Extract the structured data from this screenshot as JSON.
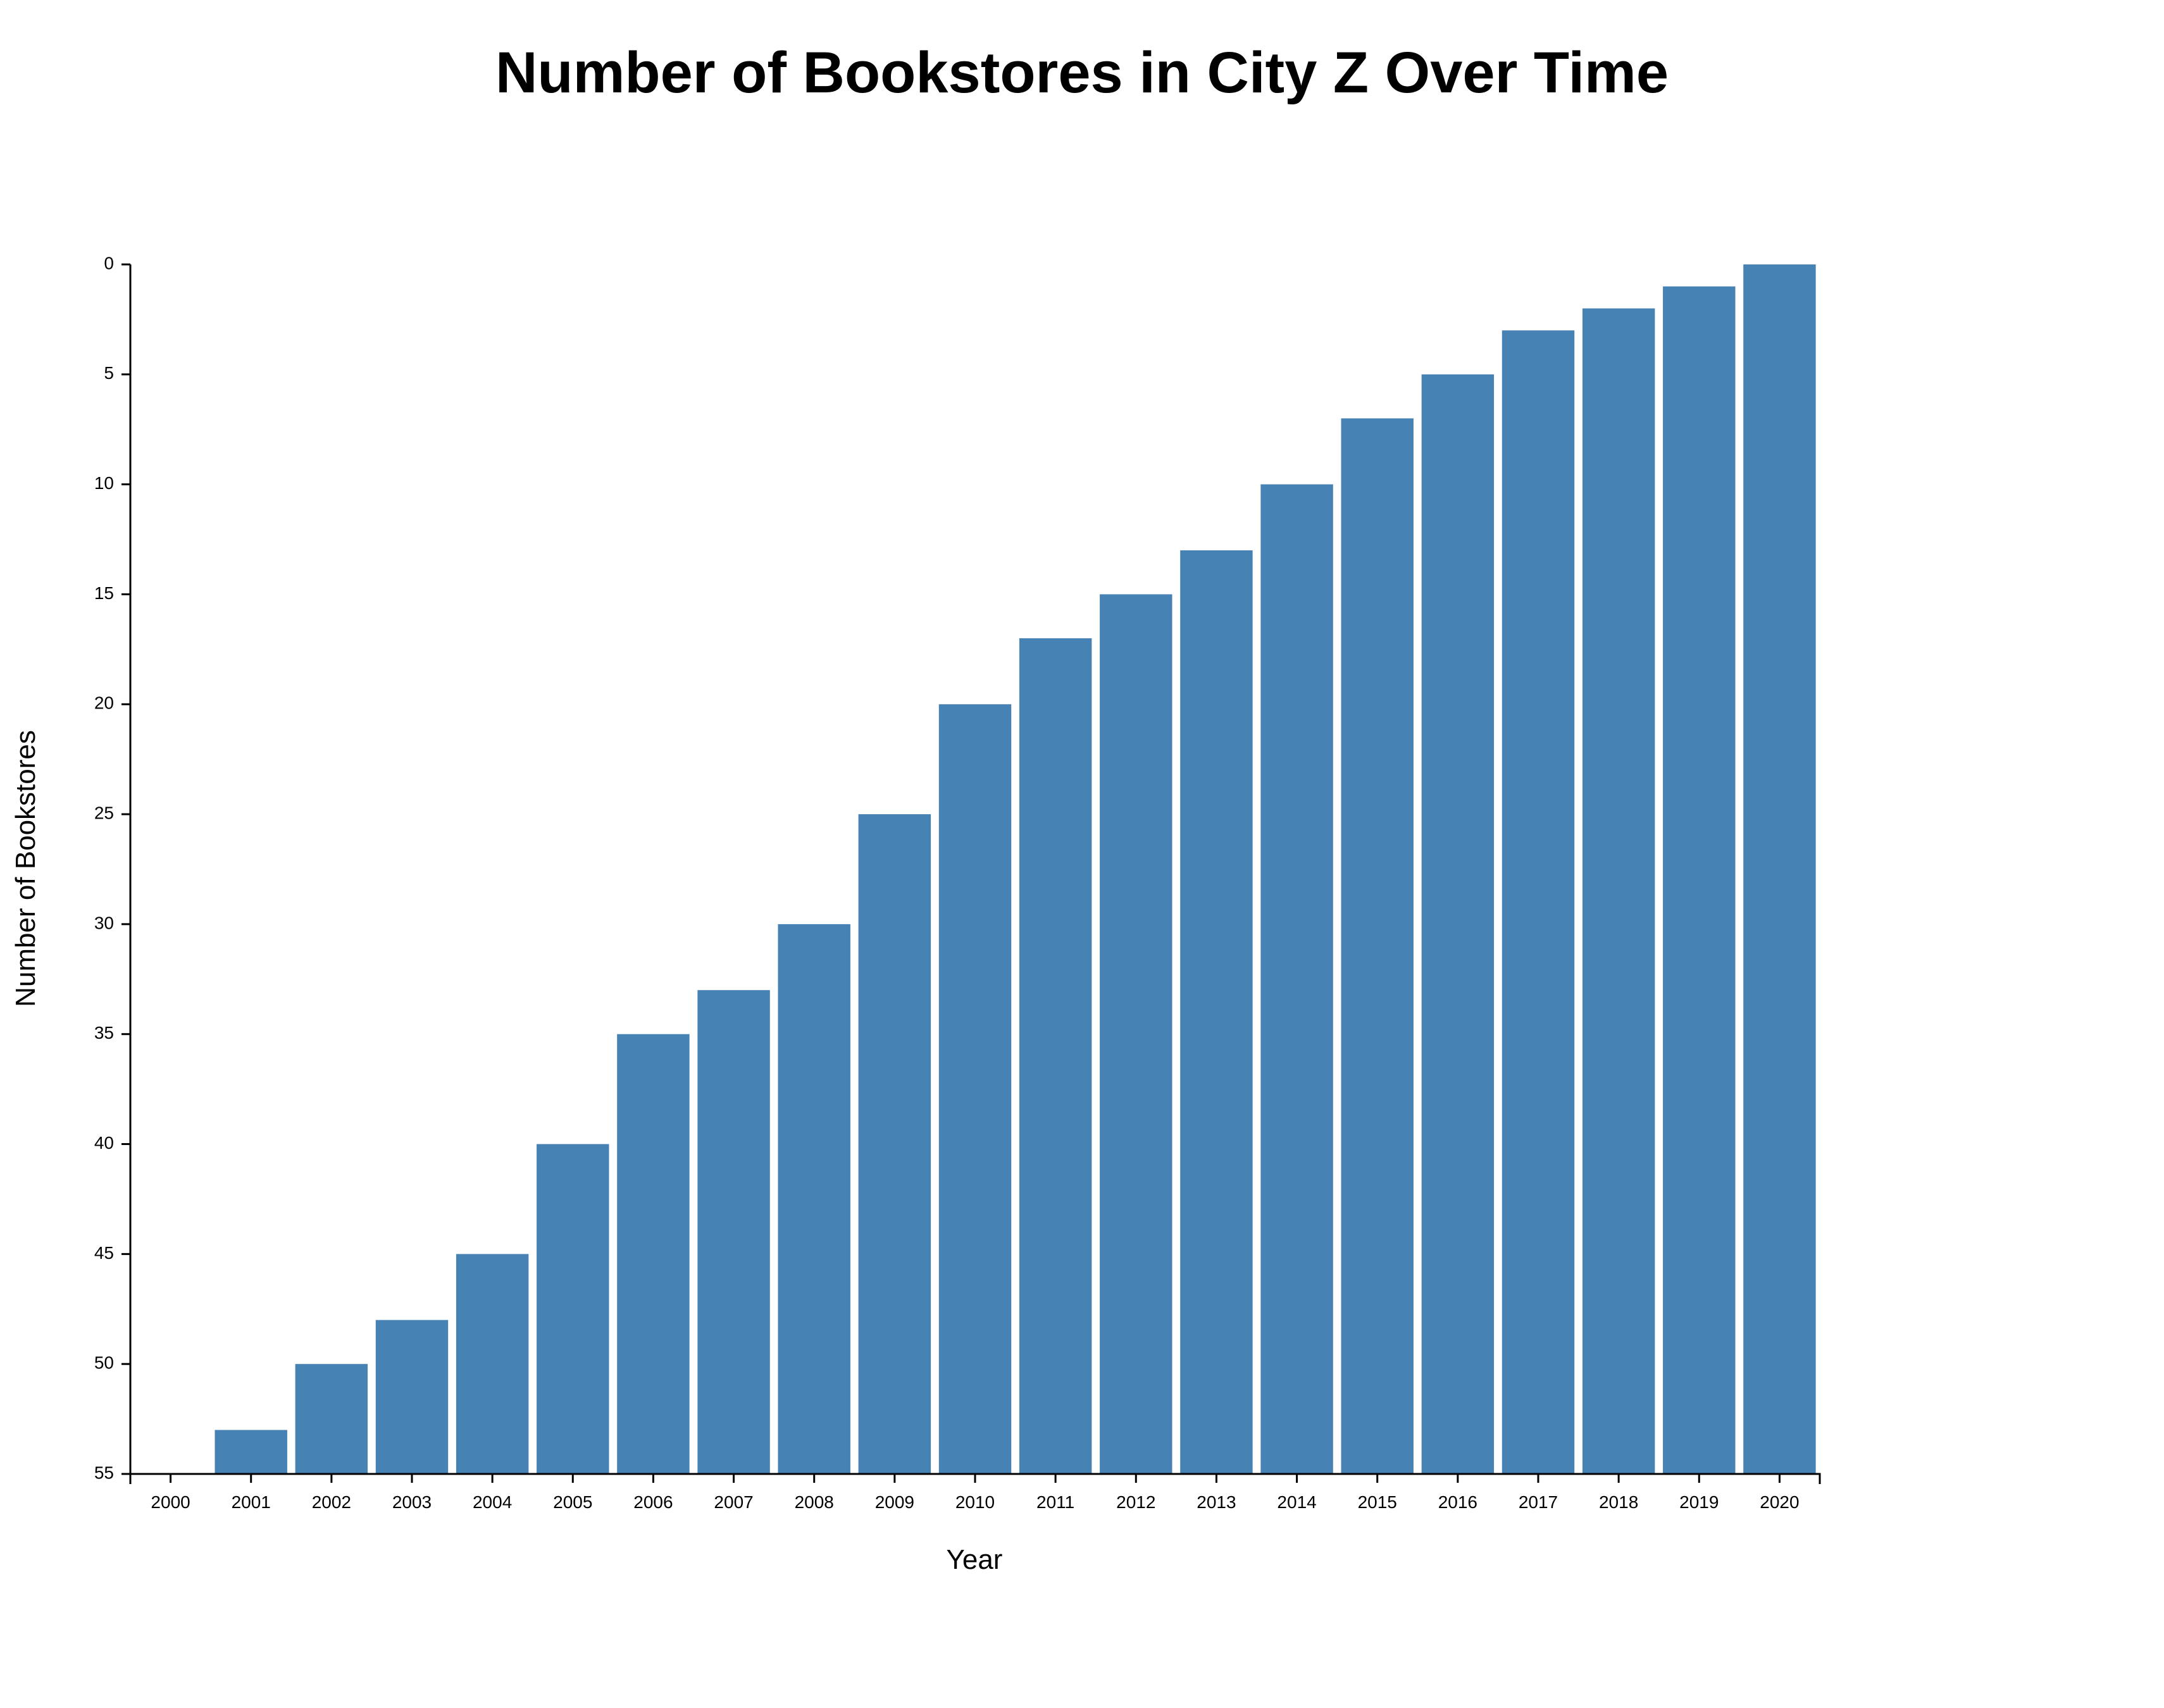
{
  "chart_data": {
    "type": "bar",
    "title": "Number of Bookstores in City Z Over Time",
    "xlabel": "Year",
    "ylabel": "Number of Bookstores",
    "categories": [
      "2000",
      "2001",
      "2002",
      "2003",
      "2004",
      "2005",
      "2006",
      "2007",
      "2008",
      "2009",
      "2010",
      "2011",
      "2012",
      "2013",
      "2014",
      "2015",
      "2016",
      "2017",
      "2018",
      "2019",
      "2020"
    ],
    "values": [
      55,
      53,
      50,
      48,
      45,
      40,
      35,
      33,
      30,
      25,
      20,
      17,
      15,
      13,
      10,
      7,
      5,
      3,
      2,
      1,
      0
    ],
    "ylim": [
      0,
      55
    ],
    "y_axis_inverted": true,
    "y_ticks": [
      0,
      5,
      10,
      15,
      20,
      25,
      30,
      35,
      40,
      45,
      50,
      55
    ],
    "grid": false,
    "bar_color": "#4682b4"
  }
}
